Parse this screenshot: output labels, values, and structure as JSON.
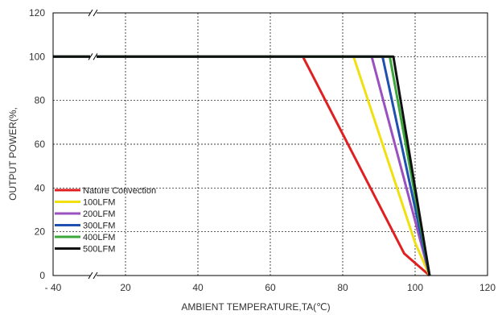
{
  "chart_data": {
    "type": "line",
    "title": "",
    "xlabel": "AMBIENT TEMPERATURE,TA(℃)",
    "ylabel": "OUTPUT POWER(%,",
    "xlim": [
      -40,
      120
    ],
    "ylim": [
      0,
      120
    ],
    "x_ticks": [
      -40,
      20,
      40,
      60,
      80,
      100,
      120
    ],
    "x_tick_labels": [
      "- 40",
      "20",
      "40",
      "60",
      "80",
      "100",
      "120"
    ],
    "y_ticks": [
      0,
      20,
      40,
      60,
      80,
      100,
      120
    ],
    "y_tick_labels": [
      "0",
      "20",
      "40",
      "60",
      "80",
      "100",
      "120"
    ],
    "grid": true,
    "axis_break": true,
    "legend_position": "lower-left",
    "series": [
      {
        "name": "Nature Convection",
        "color": "#e02020",
        "x": [
          -40,
          69,
          97,
          104
        ],
        "y": [
          100,
          100,
          10,
          0
        ]
      },
      {
        "name": "100LFM",
        "color": "#f0e010",
        "x": [
          -40,
          83,
          100,
          104
        ],
        "y": [
          100,
          100,
          15,
          0
        ]
      },
      {
        "name": "200LFM",
        "color": "#9b50c0",
        "x": [
          -40,
          88,
          104
        ],
        "y": [
          100,
          100,
          0
        ]
      },
      {
        "name": "300LFM",
        "color": "#1f4fb0",
        "x": [
          -40,
          91,
          104
        ],
        "y": [
          100,
          100,
          0
        ]
      },
      {
        "name": "400LFM",
        "color": "#3aa83a",
        "x": [
          -40,
          93,
          104
        ],
        "y": [
          100,
          100,
          0
        ]
      },
      {
        "name": "500LFM",
        "color": "#111111",
        "x": [
          -40,
          94,
          104
        ],
        "y": [
          100,
          100,
          0
        ]
      }
    ]
  }
}
